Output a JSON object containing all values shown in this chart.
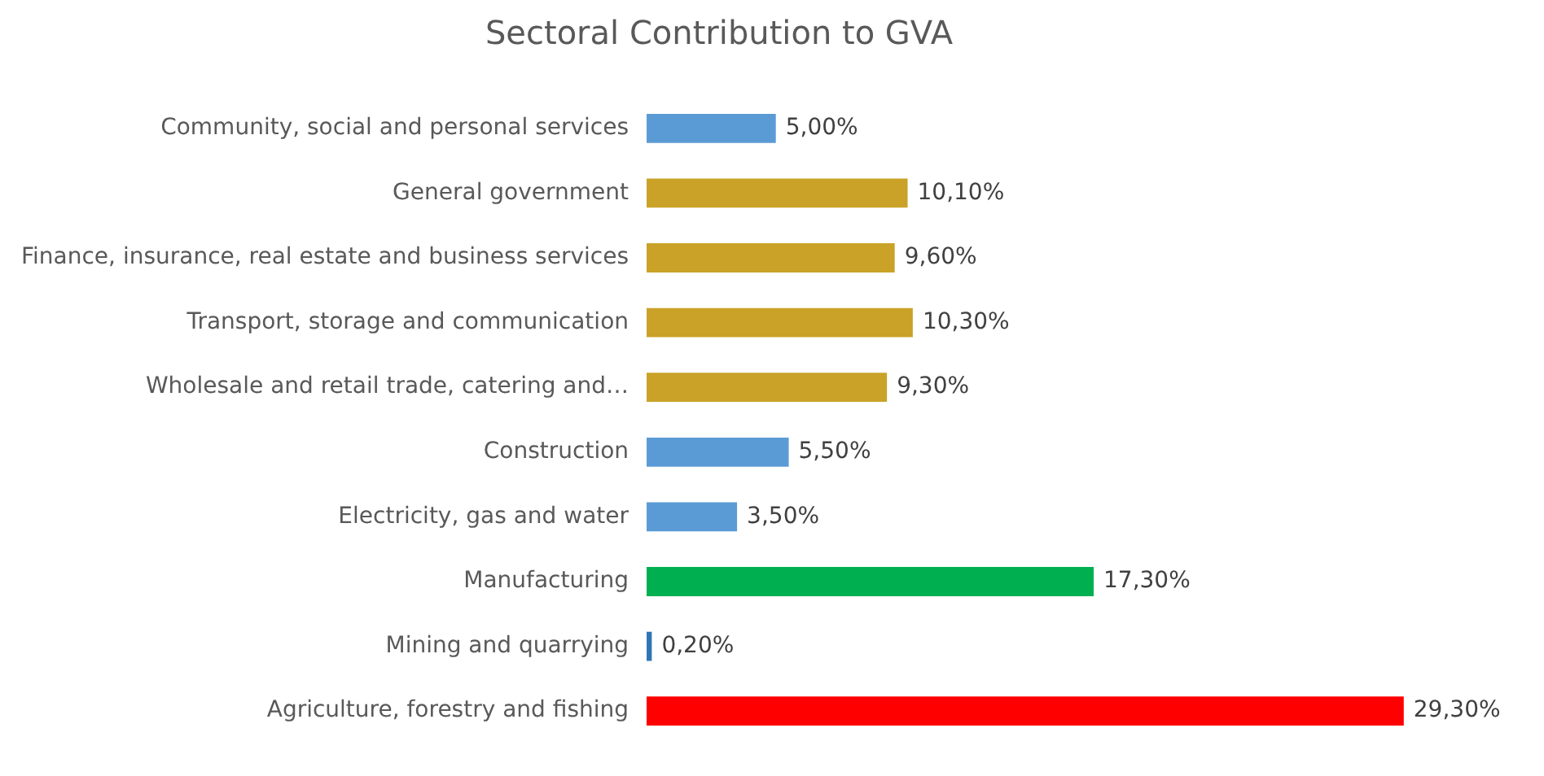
{
  "chart_data": {
    "type": "bar",
    "orientation": "horizontal",
    "title": "Sectoral Contribution to GVA",
    "categories": [
      "Community, social and personal services",
      "General government",
      "Finance, insurance, real estate and business services",
      "Transport, storage and communication",
      "Wholesale and retail trade, catering and…",
      "Construction",
      "Electricity, gas and water",
      "Manufacturing",
      "Mining and quarrying",
      "Agriculture, forestry and fishing"
    ],
    "values": [
      5.0,
      10.1,
      9.6,
      10.3,
      9.3,
      5.5,
      3.5,
      17.3,
      0.2,
      29.3
    ],
    "colors": [
      "#5b9bd5",
      "#c9a227",
      "#c9a227",
      "#c9a227",
      "#c9a227",
      "#5b9bd5",
      "#5b9bd5",
      "#00b050",
      "#2e75b6",
      "#ff0000"
    ],
    "value_labels": [
      "5,00%",
      "10,10%",
      "9,60%",
      "10,30%",
      "9,30%",
      "5,50%",
      "3,50%",
      "17,30%",
      "0,20%",
      "29,30%"
    ],
    "grid": false,
    "legend": false,
    "tick_labels": "y"
  }
}
